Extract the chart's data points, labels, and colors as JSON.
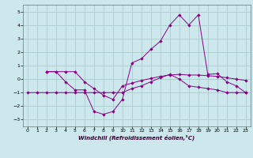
{
  "xlabel": "Windchill (Refroidissement éolien,°C)",
  "background_color": "#cce8ec",
  "grid_color": "#aacccc",
  "line_color": "#880088",
  "xlim": [
    -0.5,
    23.5
  ],
  "ylim": [
    -3.5,
    5.5
  ],
  "yticks": [
    -3,
    -2,
    -1,
    0,
    1,
    2,
    3,
    4,
    5
  ],
  "xticks": [
    0,
    1,
    2,
    3,
    4,
    5,
    6,
    7,
    8,
    9,
    10,
    11,
    12,
    13,
    14,
    15,
    16,
    17,
    18,
    19,
    20,
    21,
    22,
    23
  ],
  "s1_x": [
    0,
    1,
    2,
    3,
    4,
    5,
    6,
    7,
    8,
    9,
    10,
    11,
    12,
    13,
    14,
    15,
    16,
    17,
    18,
    19,
    20,
    21,
    22,
    23
  ],
  "s1_y": [
    -1.0,
    -1.0,
    -1.0,
    -1.0,
    -1.0,
    -1.0,
    -1.0,
    -1.0,
    -1.0,
    -1.0,
    -1.0,
    -0.7,
    -0.5,
    -0.2,
    0.1,
    0.35,
    0.0,
    -0.5,
    -0.6,
    -0.7,
    -0.8,
    -1.0,
    -1.0,
    -1.0
  ],
  "s2_x": [
    2,
    3,
    4,
    5,
    6,
    7,
    8,
    9,
    10,
    11,
    12,
    13,
    14,
    15,
    16,
    17,
    18,
    19,
    20,
    21,
    22,
    23
  ],
  "s2_y": [
    0.55,
    0.55,
    0.55,
    0.55,
    -0.2,
    -0.7,
    -1.2,
    -1.5,
    -0.5,
    -0.3,
    -0.1,
    0.05,
    0.2,
    0.3,
    0.35,
    0.3,
    0.3,
    0.25,
    0.2,
    0.1,
    0.0,
    -0.1
  ],
  "s3_x": [
    2,
    3,
    4,
    5,
    6,
    7,
    8,
    9,
    10,
    11,
    12,
    13,
    14,
    15,
    16,
    17,
    18,
    19,
    20,
    21,
    22,
    23
  ],
  "s3_y": [
    0.55,
    0.55,
    -0.2,
    -0.8,
    -0.8,
    -2.4,
    -2.6,
    -2.4,
    -1.5,
    1.2,
    1.5,
    2.2,
    2.8,
    4.0,
    4.75,
    4.0,
    4.75,
    0.35,
    0.4,
    -0.2,
    -0.5,
    -1.0
  ]
}
